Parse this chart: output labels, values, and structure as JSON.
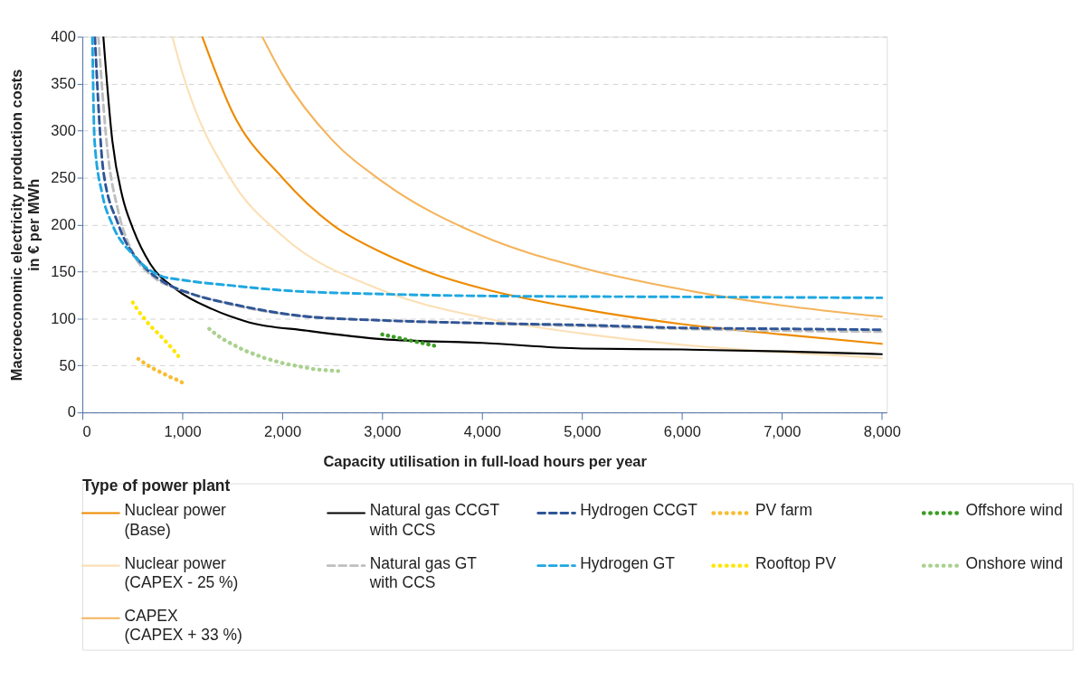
{
  "chart_data": {
    "type": "line",
    "xlabel": "Capacity utilisation in full-load hours per year",
    "ylabel": "Macroeconomic electricity production costs\nin € per MWh",
    "legend_title": "Type of power plant",
    "legend": "bottom",
    "grid": "y",
    "xlim": [
      0,
      8050
    ],
    "xticks": [
      0,
      {
        "value": 1000,
        "label": "1,000"
      },
      {
        "value": 2000,
        "label": "2,000"
      },
      {
        "value": 3000,
        "label": "3,000"
      },
      {
        "value": 4000,
        "label": "4,000"
      },
      {
        "value": 5000,
        "label": "5,000"
      },
      {
        "value": 6000,
        "label": "6,000"
      },
      {
        "value": 7000,
        "label": "7,000"
      },
      {
        "value": 8000,
        "label": "8,000"
      }
    ],
    "ylim": [
      0,
      400
    ],
    "yticks": [
      0,
      50,
      100,
      150,
      200,
      250,
      300,
      350,
      400
    ],
    "series": [
      {
        "name": "Nuclear power\n(Base)",
        "color": "#ed8b00",
        "line_style": "solid",
        "x": [
          1200,
          1500,
          2000,
          2500,
          3000,
          3500,
          4000,
          5000,
          6000,
          7000,
          8000
        ],
        "values": [
          400,
          320,
          250,
          200,
          170,
          148,
          132,
          110,
          94,
          83,
          73
        ]
      },
      {
        "name": "Nuclear power\n(CAPEX - 25 %)",
        "color": "#fbe0b6",
        "line_style": "solid",
        "x": [
          900,
          1000,
          1500,
          2000,
          3000,
          4000,
          5000,
          6000,
          7000,
          8000
        ],
        "values": [
          400,
          362,
          246,
          188,
          130,
          101,
          84,
          72,
          64,
          58
        ]
      },
      {
        "name": "CAPEX\n(CAPEX + 33 %)",
        "color": "#f4b45c",
        "line_style": "solid",
        "x": [
          1800,
          2000,
          2500,
          3000,
          4000,
          5000,
          6000,
          7000,
          8000
        ],
        "values": [
          400,
          360,
          290,
          246,
          188,
          154,
          131,
          114,
          102
        ]
      },
      {
        "name": "Natural gas CCGT\nwith CCS",
        "color": "#000000",
        "line_style": "solid",
        "x": [
          210,
          300,
          400,
          505,
          680,
          940,
          1300,
          1665,
          2250,
          3000,
          4000,
          5000,
          6000,
          7000,
          8000
        ],
        "values": [
          400,
          289,
          230,
          196,
          158,
          131,
          110,
          96,
          87,
          78,
          74,
          68,
          67,
          65,
          62
        ]
      },
      {
        "name": "Natural gas GT\nwith CCS",
        "color": "#bfbfbf",
        "line_style": "dashed",
        "x": [
          160,
          250,
          357,
          505,
          700,
          940,
          1300,
          2000,
          3000,
          4000,
          5000,
          6000,
          7000,
          8000
        ],
        "values": [
          400,
          280,
          215,
          170,
          145,
          132,
          120,
          105,
          98,
          95,
          92,
          89,
          87,
          86
        ]
      },
      {
        "name": "Hydrogen CCGT",
        "color": "#2f5597",
        "line_style": "dashed",
        "x": [
          125,
          210,
          357,
          620,
          795,
          1100,
          1515,
          2250,
          3000,
          4000,
          5000,
          6000,
          7000,
          8000
        ],
        "values": [
          400,
          257,
          201,
          155,
          140,
          126,
          115,
          102,
          98,
          95,
          93,
          90,
          89,
          88
        ]
      },
      {
        "name": "Hydrogen GT",
        "color": "#1fa7e1",
        "line_style": "dashed",
        "x": [
          100,
          122,
          200,
          296,
          505,
          795,
          1000,
          1500,
          2000,
          3000,
          4000,
          6000,
          8000
        ],
        "values": [
          400,
          289,
          232,
          201,
          168,
          145,
          141,
          135,
          130,
          126,
          124,
          123,
          122
        ]
      },
      {
        "name": "PV farm",
        "color": "#f9bc31",
        "line_style": "dotted",
        "x": [
          560,
          640,
          720,
          800,
          870,
          940,
          995
        ],
        "values": [
          57,
          51,
          46,
          42,
          38,
          35,
          32
        ]
      },
      {
        "name": "Rooftop PV",
        "color": "#ffe600",
        "line_style": "dotted",
        "x": [
          505,
          560,
          620,
          680,
          760,
          830,
          900,
          960
        ],
        "values": [
          117,
          108,
          100,
          92,
          84,
          76,
          68,
          60
        ]
      },
      {
        "name": "Offshore wind",
        "color": "#3a9d23",
        "line_style": "dotted",
        "x": [
          3000,
          3090,
          3180,
          3260,
          3350,
          3440,
          3520
        ],
        "values": [
          83,
          81,
          79,
          77,
          75,
          73,
          71
        ]
      },
      {
        "name": "Onshore wind",
        "color": "#a9d18e",
        "line_style": "dotted",
        "x": [
          1270,
          1350,
          1440,
          1530,
          1620,
          1720,
          1820,
          1920,
          2020,
          2120,
          2220,
          2320,
          2430,
          2560
        ],
        "values": [
          89,
          82,
          76,
          71,
          66,
          62,
          58,
          55,
          52,
          50,
          48,
          46,
          45,
          44
        ]
      }
    ]
  }
}
